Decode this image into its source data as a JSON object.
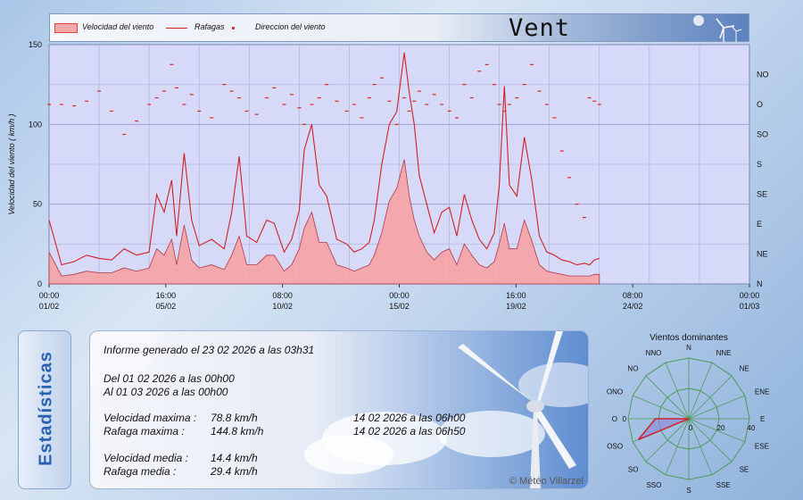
{
  "header": {
    "title": "Vent",
    "legend": {
      "speed": "Velocidad del viento",
      "gust": "Rafagas",
      "direction": "Direccion del viento"
    }
  },
  "colors": {
    "speed_fill": "#f4a6a8",
    "gust_line": "#d0202a",
    "direction_marks": "#d62828",
    "plot_bg": "#d7d9f8",
    "accent_blue": "#2a62b3"
  },
  "chart_data": [
    {
      "type": "area",
      "ylabel": "Velocidad del viento  ( km/h )",
      "ylim": [
        0,
        150
      ],
      "yticks": [
        "0",
        "50",
        "100",
        "150"
      ],
      "right_axis_labels": [
        "N",
        "NE",
        "E",
        "SE",
        "S",
        "SO",
        "O",
        "NO"
      ],
      "xlim_days": [
        1,
        29
      ],
      "xticks": [
        {
          "time": "00:00",
          "date": "01/02"
        },
        {
          "time": "16:00",
          "date": "05/02"
        },
        {
          "time": "08:00",
          "date": "10/02"
        },
        {
          "time": "00:00",
          "date": "15/02"
        },
        {
          "time": "16:00",
          "date": "19/02"
        },
        {
          "time": "08:00",
          "date": "24/02"
        },
        {
          "time": "00:00",
          "date": "01/03"
        }
      ],
      "x": [
        1.0,
        1.5,
        2.0,
        2.5,
        3.0,
        3.5,
        4.0,
        4.5,
        5.0,
        5.3,
        5.6,
        5.9,
        6.1,
        6.4,
        6.7,
        7.0,
        7.5,
        8.0,
        8.3,
        8.6,
        8.9,
        9.3,
        9.7,
        10.0,
        10.4,
        10.7,
        11.0,
        11.2,
        11.5,
        11.8,
        12.1,
        12.5,
        12.9,
        13.2,
        13.5,
        13.8,
        14.0,
        14.3,
        14.6,
        14.9,
        15.2,
        15.4,
        15.6,
        15.8,
        16.1,
        16.4,
        16.7,
        17.0,
        17.3,
        17.6,
        17.9,
        18.2,
        18.5,
        18.8,
        19.0,
        19.2,
        19.4,
        19.7,
        20.0,
        20.3,
        20.6,
        20.9,
        21.2,
        21.5,
        21.8,
        22.1,
        22.4,
        22.6,
        22.8,
        23.0
      ],
      "series": [
        {
          "name": "Rafagas",
          "values": [
            40,
            12,
            14,
            18,
            16,
            15,
            22,
            18,
            20,
            56,
            45,
            65,
            30,
            82,
            40,
            24,
            28,
            22,
            45,
            80,
            30,
            26,
            40,
            38,
            20,
            28,
            46,
            84,
            100,
            62,
            55,
            28,
            25,
            20,
            22,
            26,
            40,
            75,
            100,
            108,
            145,
            120,
            100,
            68,
            50,
            32,
            45,
            48,
            30,
            56,
            40,
            28,
            22,
            32,
            62,
            124,
            62,
            55,
            92,
            65,
            30,
            20,
            18,
            15,
            14,
            12,
            13,
            12,
            15,
            16
          ]
        },
        {
          "name": "Velocidad del viento",
          "values": [
            20,
            5,
            6,
            8,
            7,
            7,
            10,
            8,
            10,
            22,
            18,
            28,
            12,
            37,
            15,
            10,
            12,
            9,
            18,
            30,
            12,
            12,
            18,
            18,
            8,
            12,
            22,
            35,
            45,
            26,
            26,
            12,
            10,
            8,
            10,
            12,
            18,
            32,
            52,
            60,
            78,
            55,
            40,
            30,
            20,
            15,
            20,
            22,
            12,
            25,
            18,
            12,
            10,
            14,
            25,
            38,
            22,
            22,
            40,
            27,
            12,
            8,
            7,
            6,
            5,
            5,
            5,
            5,
            6,
            6
          ]
        }
      ],
      "direction_degrees": [
        270,
        270,
        268,
        275,
        290,
        260,
        225,
        245,
        270,
        280,
        290,
        330,
        295,
        270,
        285,
        260,
        250,
        300,
        290,
        280,
        260,
        255,
        280,
        295,
        270,
        285,
        265,
        240,
        270,
        280,
        300,
        275,
        260,
        270,
        250,
        280,
        300,
        310,
        275,
        240,
        280,
        260,
        275,
        290,
        270,
        285,
        270,
        260,
        250,
        300,
        280,
        320,
        330,
        300,
        270,
        260,
        270,
        280,
        300,
        330,
        290,
        270,
        250,
        200,
        160,
        120,
        100,
        280,
        275,
        270
      ]
    },
    {
      "type": "radar",
      "title": "Vientos dominantes",
      "axis_labels": [
        "N",
        "NNE",
        "NE",
        "ENE",
        "E",
        "ESE",
        "SE",
        "SSE",
        "S",
        "SSO",
        "SO",
        "OSO",
        "O",
        "ONO",
        "NO",
        "NNO"
      ],
      "radial_ticks": [
        "0",
        "20",
        "40"
      ],
      "rmax": 40,
      "values": [
        0,
        0,
        0,
        0,
        0,
        0,
        0,
        0,
        0,
        0,
        0,
        36,
        22,
        0,
        0,
        0
      ]
    }
  ],
  "stats": {
    "tab_label": "Estadísticas",
    "report_line": "Informe generado el 23 02 2026 a las 03h31",
    "from_line": "Del 01 02 2026 a las 00h00",
    "to_line": "Al 01 03 2026 a las 00h00",
    "max_speed": {
      "label": "Velocidad maxima :",
      "value": "78.8 km/h",
      "when": "14 02 2026 a las 06h00"
    },
    "max_gust": {
      "label": "Rafaga maxima :",
      "value": "144.8 km/h",
      "when": "14 02 2026 a las 06h50"
    },
    "avg_speed": {
      "label": "Velocidad media :",
      "value": "14.4 km/h"
    },
    "avg_gust": {
      "label": "Rafaga media :",
      "value": "29.4 km/h"
    },
    "copyright": "© Météo Villarzel"
  }
}
